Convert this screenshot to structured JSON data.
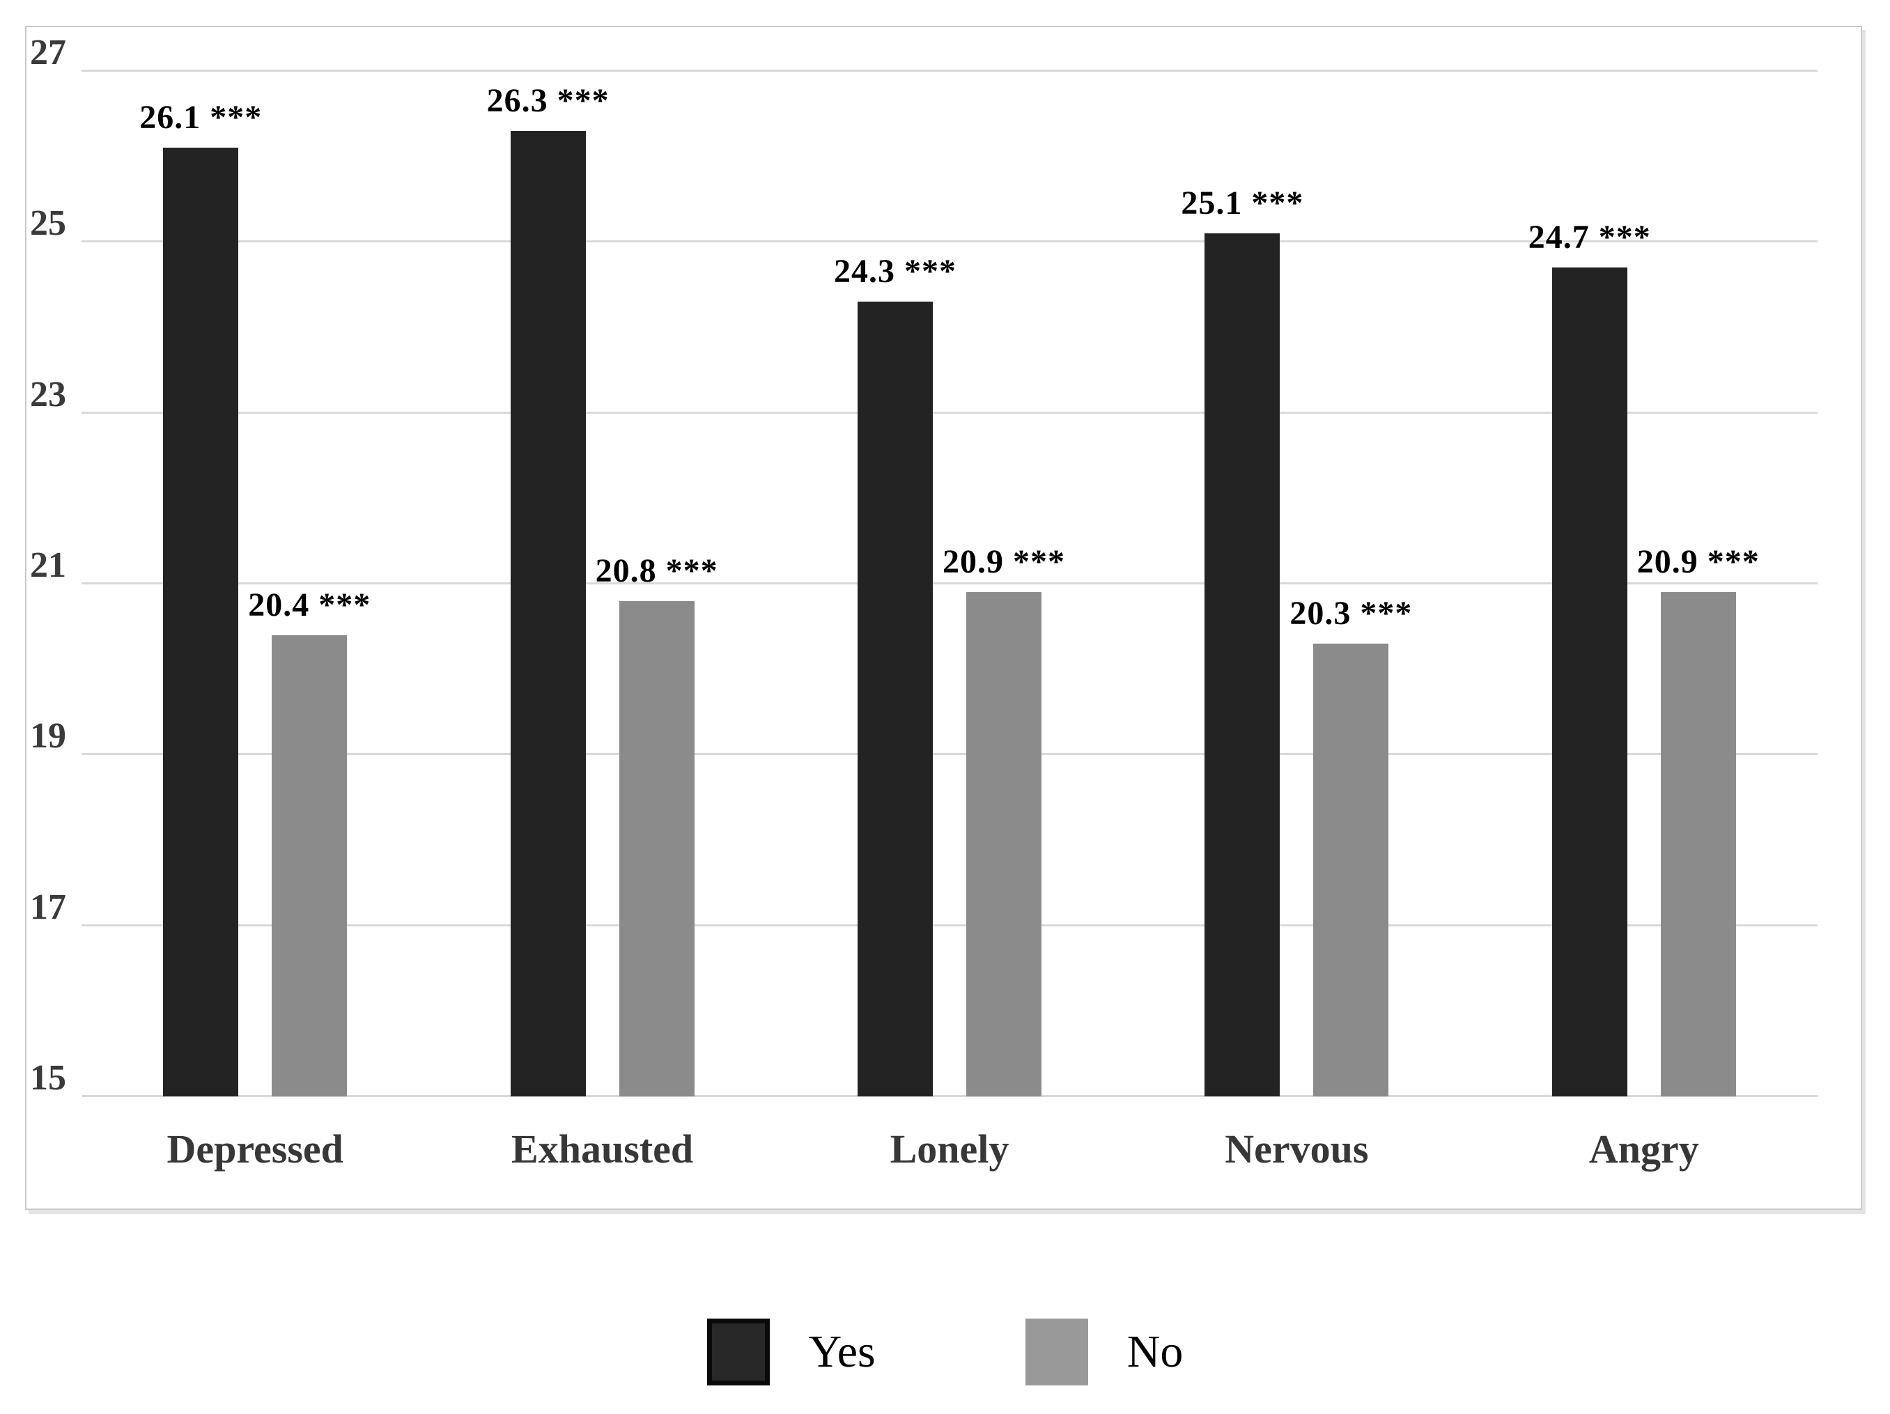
{
  "chart_data": {
    "type": "bar",
    "title": "",
    "xlabel": "",
    "ylabel": "",
    "categories": [
      "Depressed",
      "Exhausted",
      "Lonely",
      "Nervous",
      "Angry"
    ],
    "series": [
      {
        "name": "Yes",
        "color": "#232323",
        "values": [
          26.1,
          26.3,
          24.3,
          25.1,
          24.7
        ],
        "data_labels": [
          "26.1 ***",
          "26.3 ***",
          "24.3 ***",
          "25.1 ***",
          "24.7 ***"
        ]
      },
      {
        "name": "No",
        "color": "#8b8b8b",
        "values": [
          20.4,
          20.8,
          20.9,
          20.3,
          20.9
        ],
        "data_labels": [
          "20.4 ***",
          "20.8 ***",
          "20.9 ***",
          "20.3 ***",
          "20.9 ***"
        ]
      }
    ],
    "significance_marker": "***",
    "ylim": [
      15,
      27
    ],
    "yticks": [
      "15",
      "17",
      "19",
      "21",
      "23",
      "25",
      "27"
    ],
    "grid": true,
    "gridline_color": "#d9d9d9",
    "legend_position": "bottom"
  },
  "legend": {
    "yes_label": "Yes",
    "no_label": "No"
  }
}
